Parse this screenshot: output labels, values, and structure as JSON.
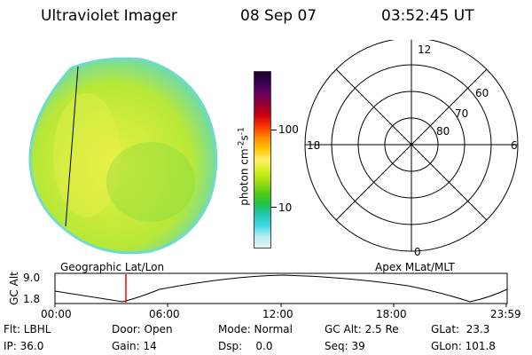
{
  "header": {
    "instrument": "Ultraviolet Imager",
    "date": "08 Sep 07",
    "time": "03:52:45 UT"
  },
  "colorbar": {
    "unit": "photon cm",
    "unit_exp1": "-2",
    "unit_mid": "s",
    "unit_exp2": "-1",
    "ticks": [
      "100",
      "10"
    ],
    "colors": [
      "#1a0030",
      "#3a0050",
      "#6a0060",
      "#9a0030",
      "#cc0010",
      "#ff3a00",
      "#ff8a00",
      "#ffc400",
      "#fff06a",
      "#d8f020",
      "#9ee010",
      "#55cc10",
      "#20c040",
      "#20c8b0",
      "#40d8e8",
      "#b8ecf0",
      "#e4f4f8"
    ]
  },
  "image": {
    "base_color": "#b8e838",
    "highlight_color": "#e8f040",
    "edge_color": "#60d8c0"
  },
  "polar": {
    "mlt_labels": {
      "top": "12",
      "left": "18",
      "right": "6",
      "bottom": "0"
    },
    "lat_labels": [
      "60",
      "70",
      "80"
    ]
  },
  "timeline": {
    "labels": {
      "left": "Geographic Lat/Lon",
      "right": "Apex MLat/MLT"
    },
    "y_axis_label": "GC Alt",
    "y_ticks": [
      "9.0",
      "1.8"
    ],
    "x_ticks": [
      "00:00",
      "06:00",
      "12:00",
      "18:00",
      "23:59"
    ],
    "marker_color": "#ff0000"
  },
  "footer": {
    "row1": {
      "flt": "Flt: LBHL",
      "door": "Door: Open",
      "mode": "Mode: Normal",
      "gc_alt": "GC Alt: 2.5 Re",
      "glat": "GLat:  23.3"
    },
    "row2": {
      "ip": "IP: 36.0",
      "gain": "Gain: 14",
      "dsp": "Dsp:    0.0",
      "seq": "Seq: 39",
      "glon": "GLon: 101.8"
    }
  }
}
